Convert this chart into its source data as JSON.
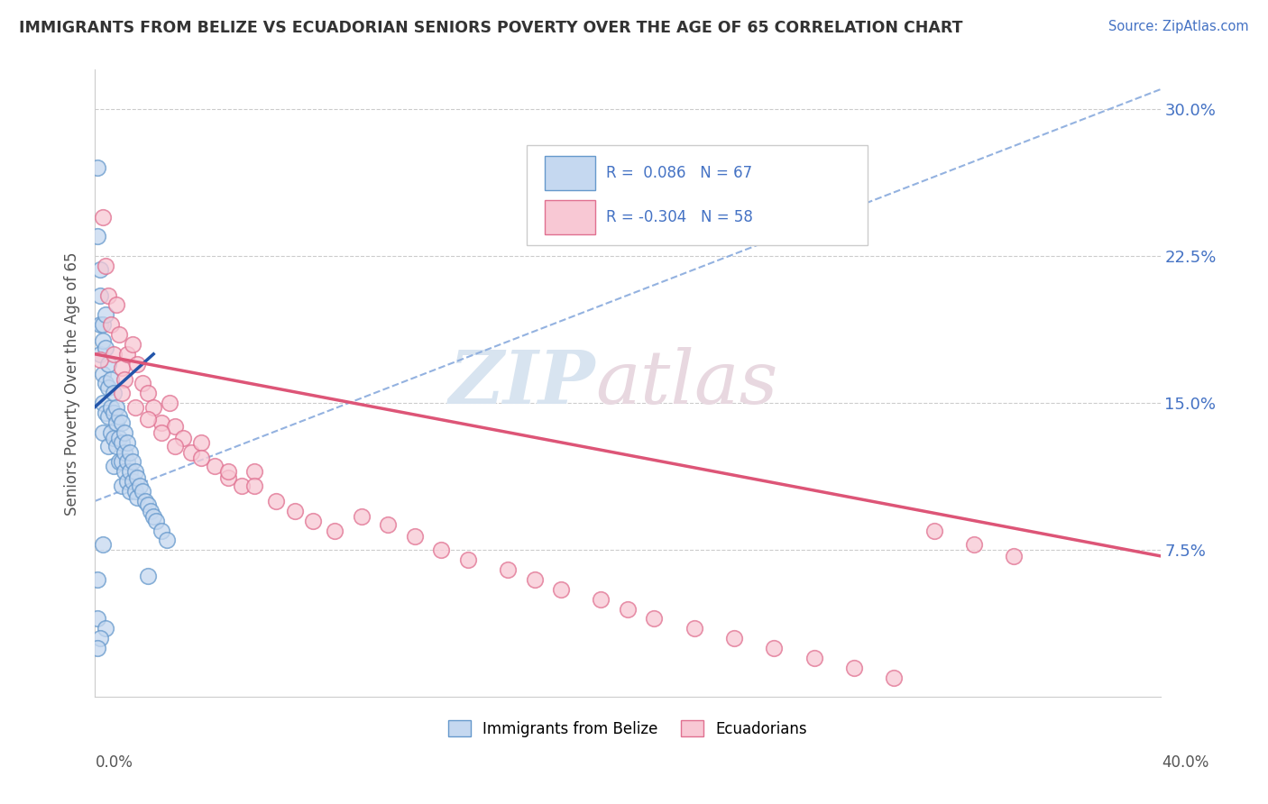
{
  "title": "IMMIGRANTS FROM BELIZE VS ECUADORIAN SENIORS POVERTY OVER THE AGE OF 65 CORRELATION CHART",
  "source": "Source: ZipAtlas.com",
  "ylabel": "Seniors Poverty Over the Age of 65",
  "xlim": [
    0.0,
    0.4
  ],
  "ylim": [
    0.0,
    0.32
  ],
  "ytick_vals": [
    0.075,
    0.15,
    0.225,
    0.3
  ],
  "ytick_labels": [
    "7.5%",
    "15.0%",
    "22.5%",
    "30.0%"
  ],
  "color_belize_face": "#c5d8f0",
  "color_belize_edge": "#6699cc",
  "color_ecuador_face": "#f8c8d4",
  "color_ecuador_edge": "#e07090",
  "line_color_belize": "#2255aa",
  "line_color_ecuador": "#dd5577",
  "trend_dashed_color": "#88aadd",
  "watermark_zip": "ZIP",
  "watermark_atlas": "atlas",
  "belize_x": [
    0.001,
    0.001,
    0.002,
    0.002,
    0.002,
    0.002,
    0.003,
    0.003,
    0.003,
    0.003,
    0.003,
    0.004,
    0.004,
    0.004,
    0.004,
    0.005,
    0.005,
    0.005,
    0.005,
    0.006,
    0.006,
    0.006,
    0.007,
    0.007,
    0.007,
    0.007,
    0.008,
    0.008,
    0.008,
    0.009,
    0.009,
    0.009,
    0.01,
    0.01,
    0.01,
    0.01,
    0.011,
    0.011,
    0.011,
    0.012,
    0.012,
    0.012,
    0.013,
    0.013,
    0.013,
    0.014,
    0.014,
    0.015,
    0.015,
    0.016,
    0.016,
    0.017,
    0.018,
    0.019,
    0.02,
    0.021,
    0.022,
    0.023,
    0.025,
    0.027,
    0.003,
    0.02,
    0.001,
    0.001,
    0.004,
    0.002,
    0.001
  ],
  "belize_y": [
    0.27,
    0.235,
    0.218,
    0.205,
    0.19,
    0.175,
    0.19,
    0.182,
    0.165,
    0.15,
    0.135,
    0.195,
    0.178,
    0.16,
    0.145,
    0.17,
    0.158,
    0.143,
    0.128,
    0.162,
    0.148,
    0.135,
    0.155,
    0.145,
    0.132,
    0.118,
    0.148,
    0.14,
    0.128,
    0.143,
    0.132,
    0.12,
    0.14,
    0.13,
    0.12,
    0.108,
    0.135,
    0.125,
    0.115,
    0.13,
    0.12,
    0.11,
    0.125,
    0.115,
    0.105,
    0.12,
    0.11,
    0.115,
    0.105,
    0.112,
    0.102,
    0.108,
    0.105,
    0.1,
    0.098,
    0.095,
    0.092,
    0.09,
    0.085,
    0.08,
    0.078,
    0.062,
    0.06,
    0.04,
    0.035,
    0.03,
    0.025
  ],
  "ecuador_x": [
    0.002,
    0.003,
    0.004,
    0.005,
    0.006,
    0.007,
    0.008,
    0.009,
    0.01,
    0.011,
    0.012,
    0.014,
    0.016,
    0.018,
    0.02,
    0.022,
    0.025,
    0.028,
    0.03,
    0.033,
    0.036,
    0.04,
    0.045,
    0.05,
    0.055,
    0.06,
    0.068,
    0.075,
    0.082,
    0.09,
    0.1,
    0.11,
    0.12,
    0.13,
    0.14,
    0.155,
    0.165,
    0.175,
    0.19,
    0.2,
    0.21,
    0.225,
    0.24,
    0.255,
    0.27,
    0.285,
    0.3,
    0.315,
    0.33,
    0.345,
    0.01,
    0.015,
    0.02,
    0.025,
    0.03,
    0.04,
    0.05,
    0.06
  ],
  "ecuador_y": [
    0.172,
    0.245,
    0.22,
    0.205,
    0.19,
    0.175,
    0.2,
    0.185,
    0.168,
    0.162,
    0.175,
    0.18,
    0.17,
    0.16,
    0.155,
    0.148,
    0.14,
    0.15,
    0.138,
    0.132,
    0.125,
    0.13,
    0.118,
    0.112,
    0.108,
    0.115,
    0.1,
    0.095,
    0.09,
    0.085,
    0.092,
    0.088,
    0.082,
    0.075,
    0.07,
    0.065,
    0.06,
    0.055,
    0.05,
    0.045,
    0.04,
    0.035,
    0.03,
    0.025,
    0.02,
    0.015,
    0.01,
    0.085,
    0.078,
    0.072,
    0.155,
    0.148,
    0.142,
    0.135,
    0.128,
    0.122,
    0.115,
    0.108
  ],
  "belize_trend_x": [
    0.0,
    0.022
  ],
  "belize_trend_y": [
    0.148,
    0.175
  ],
  "ecuador_trend_x": [
    0.0,
    0.4
  ],
  "ecuador_trend_y": [
    0.175,
    0.072
  ],
  "dashed_trend_x": [
    0.0,
    0.4
  ],
  "dashed_trend_y": [
    0.1,
    0.31
  ]
}
